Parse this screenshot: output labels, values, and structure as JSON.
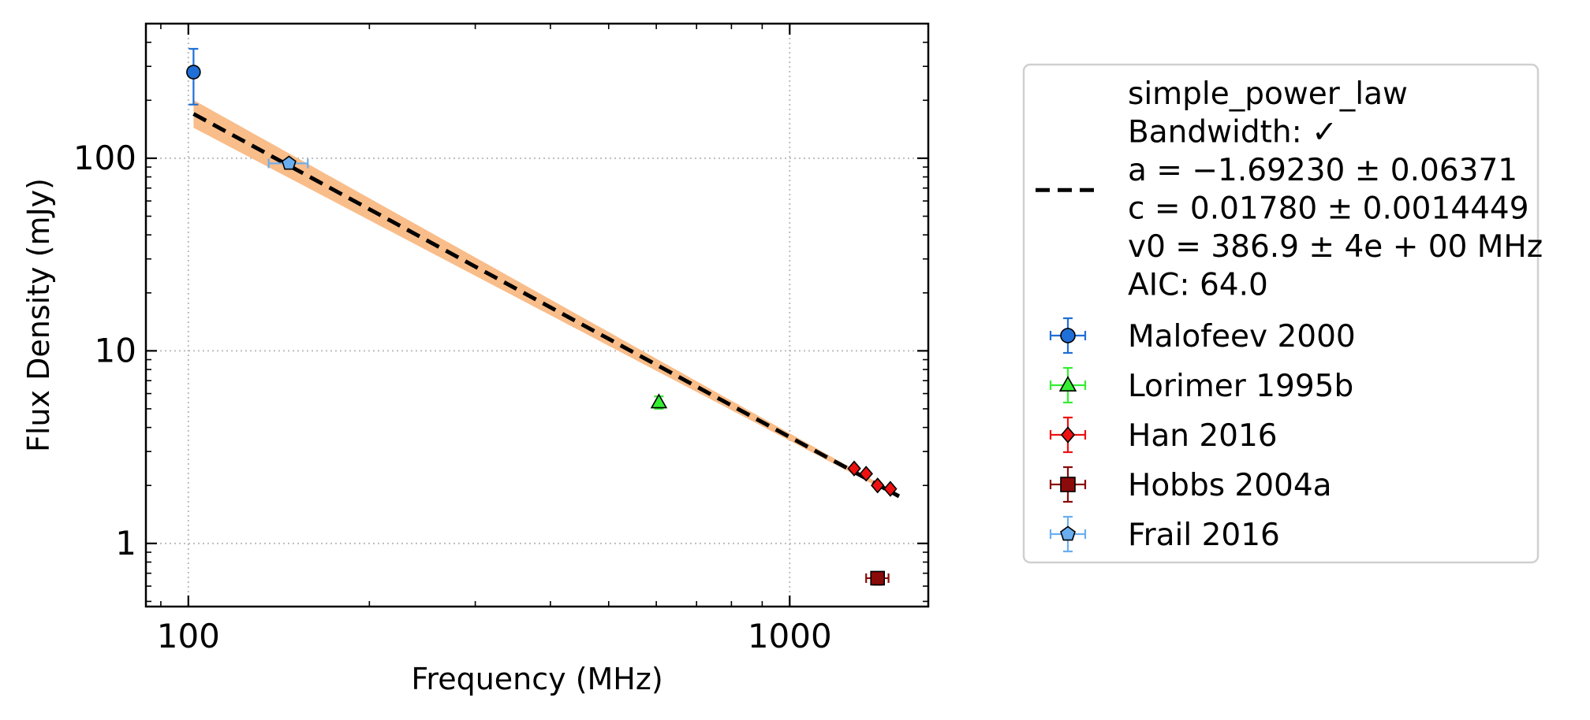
{
  "chart_data": {
    "type": "scatter",
    "xlabel": "Frequency (MHz)",
    "ylabel": "Flux Density (mJy)",
    "xscale": "log",
    "yscale": "log",
    "xlim": [
      85,
      1700
    ],
    "ylim": [
      0.47,
      500
    ],
    "grid": true,
    "legend_position": "outside right",
    "x_ticks": [
      {
        "value": 100,
        "label": "100"
      },
      {
        "value": 1000,
        "label": "1000"
      }
    ],
    "y_ticks": [
      {
        "value": 1,
        "label": "1"
      },
      {
        "value": 10,
        "label": "10"
      },
      {
        "value": 100,
        "label": "100"
      }
    ],
    "fit": {
      "model": "simple_power_law",
      "legend_lines": [
        "simple_power_law",
        "Bandwidth: ✓",
        "a = −1.69230 ± 0.06371",
        "c = 0.01780 ± 0.0014449",
        "v0 = 386.9 ± 4e + 00 MHz",
        "AIC: 64.0"
      ],
      "a": -1.6923,
      "c": 0.0178,
      "v0": 386.9,
      "x_range": [
        102,
        1520
      ],
      "line_color": "#000000",
      "band_color": "#f9bd8a",
      "band_ratio_low": 1.18,
      "band_ratio_high": 1.02
    },
    "series": [
      {
        "name": "Malofeev 2000",
        "marker": "circle",
        "color": "#1f6fd6",
        "ecolor": "#1f6fd6",
        "points": [
          {
            "x": 102,
            "y": 280,
            "yerr_low": 90,
            "yerr_high": 90,
            "xerr": 0
          }
        ]
      },
      {
        "name": "Lorimer 1995b",
        "marker": "triangle",
        "color": "#33ee33",
        "ecolor": "#33ee33",
        "points": [
          {
            "x": 606,
            "y": 5.4,
            "yerr_low": 0.4,
            "yerr_high": 0.4,
            "xerr": 0
          }
        ]
      },
      {
        "name": "Han 2016",
        "marker": "diamond",
        "color": "#ee1111",
        "ecolor": "#ee1111",
        "points": [
          {
            "x": 1280,
            "y": 2.45,
            "yerr_low": 0,
            "yerr_high": 0,
            "xerr": 0
          },
          {
            "x": 1340,
            "y": 2.3,
            "yerr_low": 0,
            "yerr_high": 0,
            "xerr": 0
          },
          {
            "x": 1400,
            "y": 2.0,
            "yerr_low": 0,
            "yerr_high": 0,
            "xerr": 0
          },
          {
            "x": 1470,
            "y": 1.92,
            "yerr_low": 0,
            "yerr_high": 0,
            "xerr": 0
          }
        ]
      },
      {
        "name": "Hobbs 2004a",
        "marker": "square",
        "color": "#8b0a0a",
        "ecolor": "#8b0a0a",
        "points": [
          {
            "x": 1400,
            "y": 0.66,
            "yerr_low": 0.05,
            "yerr_high": 0.05,
            "xerr": 60
          }
        ]
      },
      {
        "name": "Frail 2016",
        "marker": "pentagon",
        "color": "#6aaef0",
        "ecolor": "#6aaef0",
        "points": [
          {
            "x": 147,
            "y": 94,
            "yerr_low": 0,
            "yerr_high": 0,
            "xerr": 11
          }
        ]
      }
    ]
  }
}
